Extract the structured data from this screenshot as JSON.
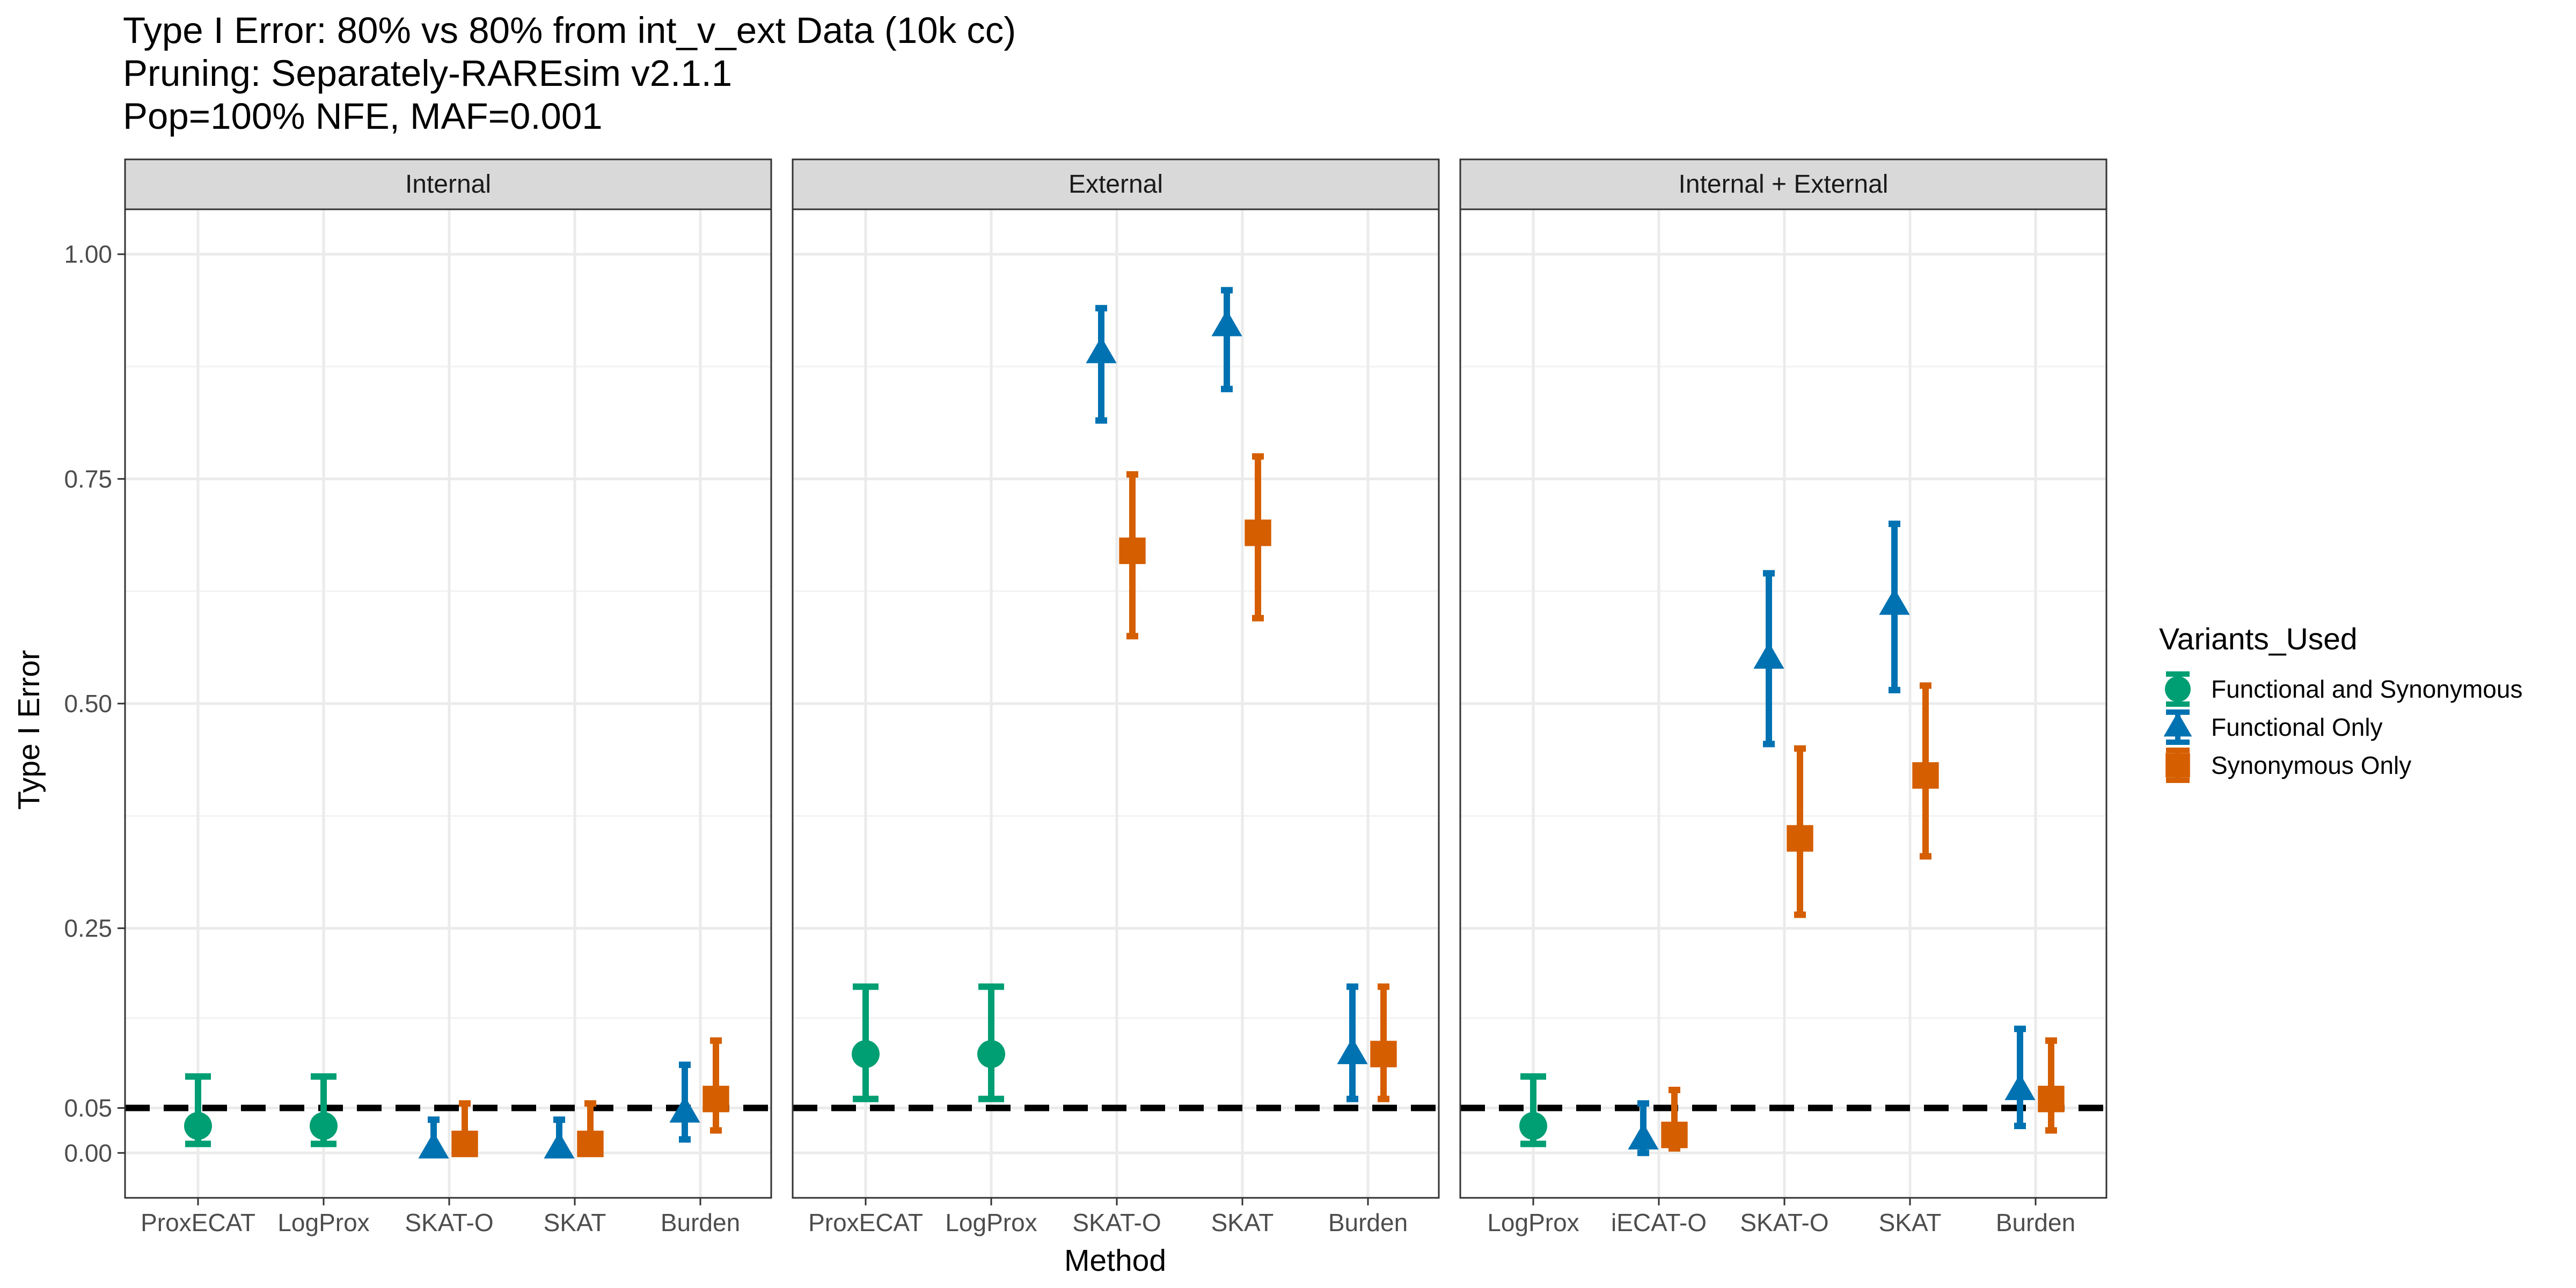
{
  "chart_data": {
    "type": "scatter",
    "title_lines": [
      "Type I Error: 80% vs 80% from int_v_ext Data (10k cc)",
      "Pruning: Separately-RAREsim v2.1.1",
      "Pop=100% NFE, MAF=0.001"
    ],
    "xlabel": "Method",
    "ylabel": "Type I Error",
    "ylim": [
      -0.05,
      1.05
    ],
    "yticks": [
      0.0,
      0.05,
      0.25,
      0.5,
      0.75,
      1.0
    ],
    "ytick_labels": [
      "0.00",
      "0.05",
      "0.25",
      "0.50",
      "0.75",
      "1.00"
    ],
    "reference_line": 0.05,
    "grid": true,
    "legend": {
      "title": "Variants_Used",
      "position": "right",
      "entries": [
        {
          "label": "Functional and Synonymous",
          "color": "#009E73",
          "shape": "circle"
        },
        {
          "label": "Functional Only",
          "color": "#0072B2",
          "shape": "triangle"
        },
        {
          "label": "Synonymous Only",
          "color": "#D55E00",
          "shape": "square"
        }
      ]
    },
    "panels": [
      {
        "label": "Internal",
        "categories": [
          "ProxECAT",
          "LogProx",
          "SKAT-O",
          "SKAT",
          "Burden"
        ],
        "points": [
          {
            "method": "ProxECAT",
            "group": "Functional and Synonymous",
            "y": 0.03,
            "lo": 0.01,
            "hi": 0.085
          },
          {
            "method": "LogProx",
            "group": "Functional and Synonymous",
            "y": 0.03,
            "lo": 0.01,
            "hi": 0.085
          },
          {
            "method": "SKAT-O",
            "group": "Functional Only",
            "y": 0.005,
            "lo": 0.0,
            "hi": 0.037
          },
          {
            "method": "SKAT-O",
            "group": "Synonymous Only",
            "y": 0.01,
            "lo": 0.0,
            "hi": 0.055
          },
          {
            "method": "SKAT",
            "group": "Functional Only",
            "y": 0.005,
            "lo": 0.0,
            "hi": 0.037
          },
          {
            "method": "SKAT",
            "group": "Synonymous Only",
            "y": 0.01,
            "lo": 0.0,
            "hi": 0.055
          },
          {
            "method": "Burden",
            "group": "Functional Only",
            "y": 0.045,
            "lo": 0.015,
            "hi": 0.098
          },
          {
            "method": "Burden",
            "group": "Synonymous Only",
            "y": 0.06,
            "lo": 0.025,
            "hi": 0.125
          }
        ]
      },
      {
        "label": "External",
        "categories": [
          "ProxECAT",
          "LogProx",
          "SKAT-O",
          "SKAT",
          "Burden"
        ],
        "points": [
          {
            "method": "ProxECAT",
            "group": "Functional and Synonymous",
            "y": 0.11,
            "lo": 0.06,
            "hi": 0.185
          },
          {
            "method": "LogProx",
            "group": "Functional and Synonymous",
            "y": 0.11,
            "lo": 0.06,
            "hi": 0.185
          },
          {
            "method": "SKAT-O",
            "group": "Functional Only",
            "y": 0.89,
            "lo": 0.815,
            "hi": 0.94
          },
          {
            "method": "SKAT-O",
            "group": "Synonymous Only",
            "y": 0.67,
            "lo": 0.575,
            "hi": 0.755
          },
          {
            "method": "SKAT",
            "group": "Functional Only",
            "y": 0.92,
            "lo": 0.85,
            "hi": 0.96
          },
          {
            "method": "SKAT",
            "group": "Synonymous Only",
            "y": 0.69,
            "lo": 0.595,
            "hi": 0.775
          },
          {
            "method": "Burden",
            "group": "Functional Only",
            "y": 0.11,
            "lo": 0.06,
            "hi": 0.185
          },
          {
            "method": "Burden",
            "group": "Synonymous Only",
            "y": 0.11,
            "lo": 0.06,
            "hi": 0.185
          }
        ]
      },
      {
        "label": "Internal + External",
        "categories": [
          "LogProx",
          "iECAT-O",
          "SKAT-O",
          "SKAT",
          "Burden"
        ],
        "points": [
          {
            "method": "LogProx",
            "group": "Functional and Synonymous",
            "y": 0.03,
            "lo": 0.01,
            "hi": 0.085
          },
          {
            "method": "iECAT-O",
            "group": "Functional Only",
            "y": 0.015,
            "lo": 0.0,
            "hi": 0.055
          },
          {
            "method": "iECAT-O",
            "group": "Synonymous Only",
            "y": 0.02,
            "lo": 0.005,
            "hi": 0.07
          },
          {
            "method": "SKAT-O",
            "group": "Functional Only",
            "y": 0.55,
            "lo": 0.455,
            "hi": 0.645
          },
          {
            "method": "SKAT-O",
            "group": "Synonymous Only",
            "y": 0.35,
            "lo": 0.265,
            "hi": 0.45
          },
          {
            "method": "SKAT",
            "group": "Functional Only",
            "y": 0.61,
            "lo": 0.515,
            "hi": 0.7
          },
          {
            "method": "SKAT",
            "group": "Synonymous Only",
            "y": 0.42,
            "lo": 0.33,
            "hi": 0.52
          },
          {
            "method": "Burden",
            "group": "Functional Only",
            "y": 0.07,
            "lo": 0.03,
            "hi": 0.138
          },
          {
            "method": "Burden",
            "group": "Synonymous Only",
            "y": 0.06,
            "lo": 0.025,
            "hi": 0.125
          }
        ]
      }
    ]
  }
}
